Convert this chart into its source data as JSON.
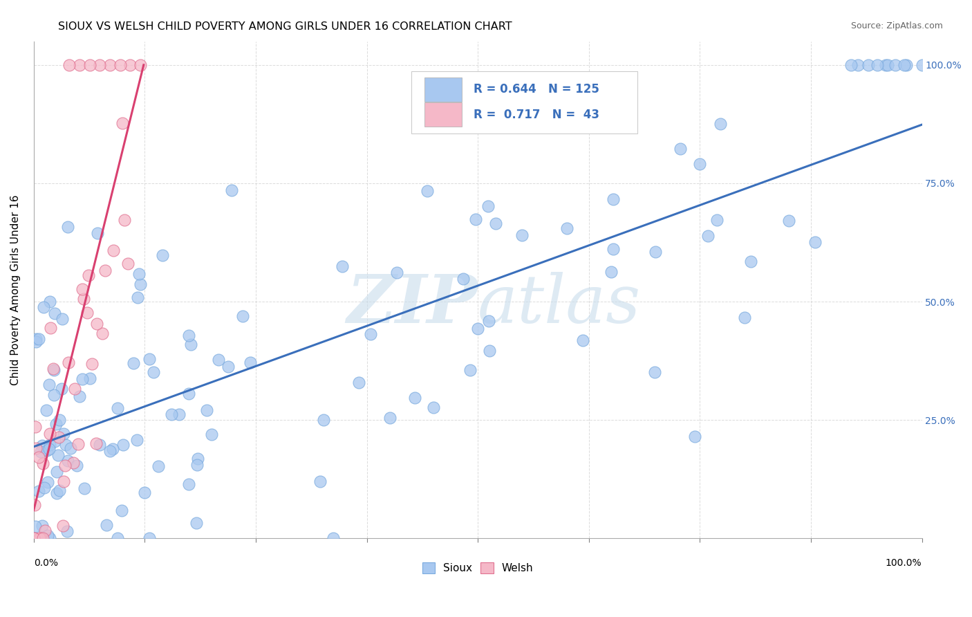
{
  "title": "SIOUX VS WELSH CHILD POVERTY AMONG GIRLS UNDER 16 CORRELATION CHART",
  "source": "Source: ZipAtlas.com",
  "ylabel": "Child Poverty Among Girls Under 16",
  "sioux_color": "#A8C8F0",
  "sioux_edge_color": "#7AAADE",
  "welsh_color": "#F5B8C8",
  "welsh_edge_color": "#E07090",
  "sioux_line_color": "#3A6FBB",
  "welsh_line_color": "#D94070",
  "watermark": "ZIPAtlas",
  "watermark_color": "#C8DCEC",
  "background_color": "#FFFFFF",
  "grid_color": "#CCCCCC",
  "sioux_R": 0.644,
  "welsh_R": 0.717,
  "sioux_N": 125,
  "welsh_N": 43,
  "right_tick_color": "#3A6FBB",
  "x_min": 0.0,
  "x_max": 1.0,
  "y_min": 0.0,
  "y_max": 1.05
}
